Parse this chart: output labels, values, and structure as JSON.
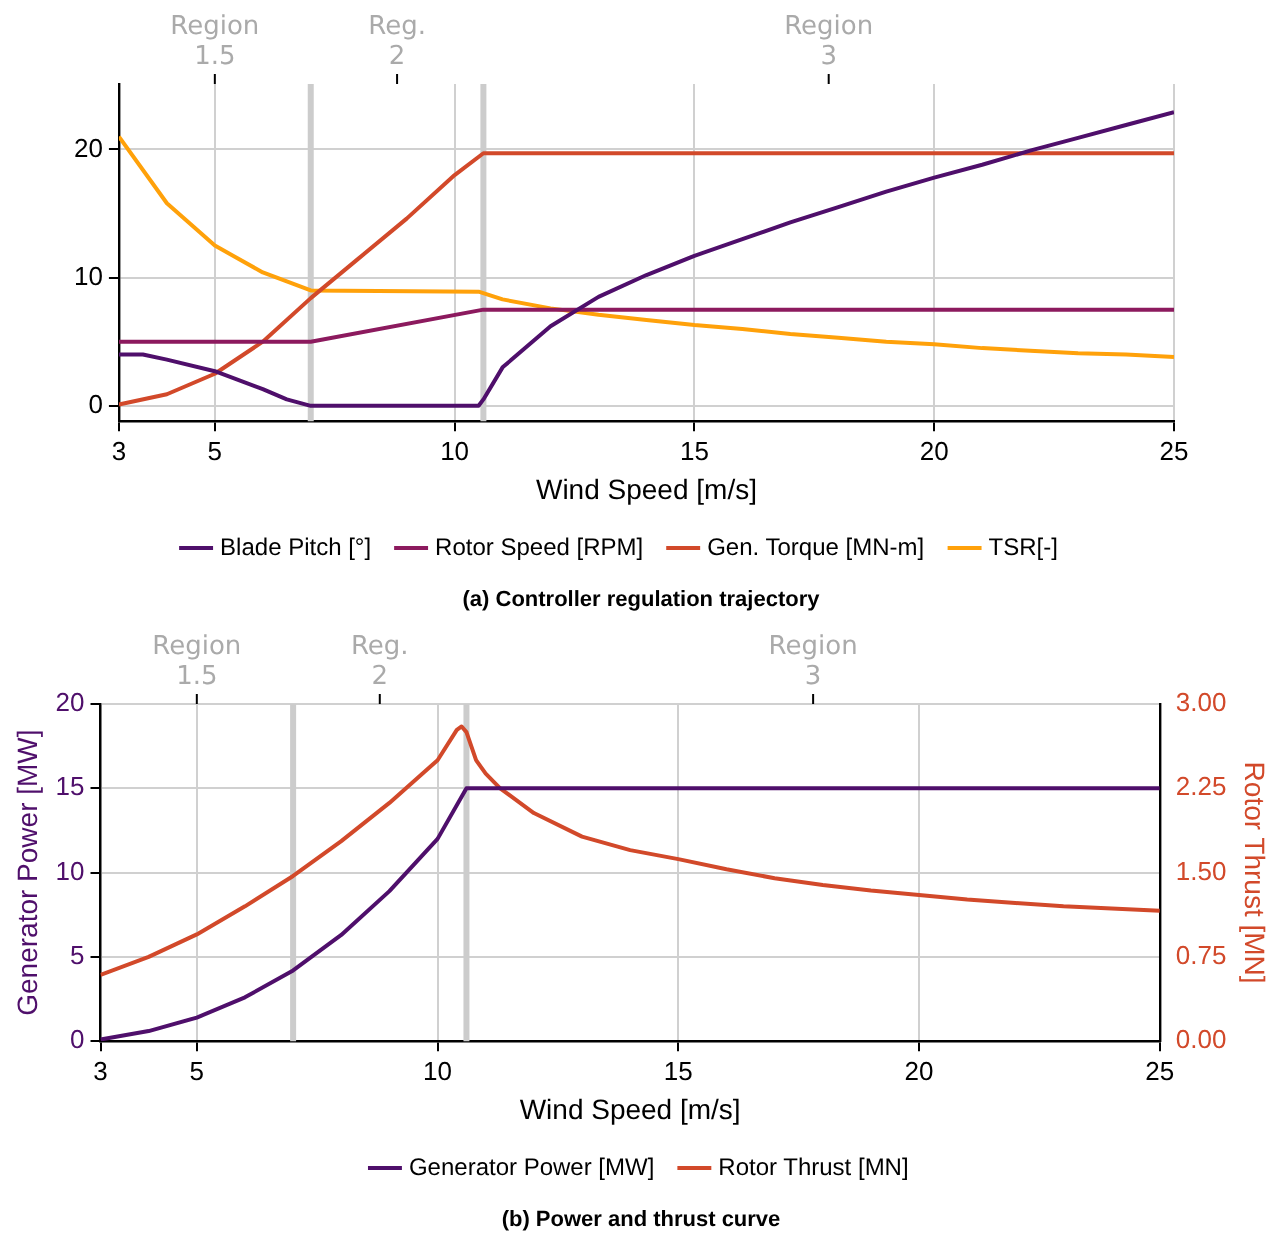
{
  "chart_data": [
    {
      "type": "line",
      "title": "(a) Controller regulation trajectory",
      "xlabel": "Wind Speed [m/s]",
      "xlim": [
        3,
        25
      ],
      "xticks": [
        3,
        5,
        10,
        15,
        20,
        25
      ],
      "ylim": [
        -1.2,
        25.1
      ],
      "yticks": [
        0,
        10,
        20
      ],
      "annotations": [
        "Region\n1.5",
        "Reg.\n2",
        "Region\n3"
      ],
      "grid": true,
      "legend": "bottom",
      "marker": "none",
      "line_style": "solid",
      "ref_lines": [
        {
          "axis": "x",
          "value": 7,
          "color": "#cccccc"
        },
        {
          "axis": "x",
          "value": 10.6,
          "color": "#cccccc"
        }
      ],
      "series": [
        {
          "name": "Blade Pitch [°]",
          "color": "#4f0f6b",
          "x": [
            3,
            3.5,
            4,
            5,
            6,
            6.5,
            7,
            10.5,
            10.6,
            11,
            12,
            13,
            14,
            15,
            16,
            17,
            18,
            19,
            20,
            21,
            22,
            23,
            24,
            25
          ],
          "values": [
            4,
            4,
            3.6,
            2.7,
            1.3,
            0.5,
            0,
            0,
            0.5,
            3,
            6.2,
            8.5,
            10.2,
            11.7,
            13,
            14.3,
            15.5,
            16.7,
            17.8,
            18.8,
            19.9,
            20.9,
            21.9,
            22.9
          ]
        },
        {
          "name": "Rotor Speed [RPM]",
          "color": "#8c1a5e",
          "x": [
            3,
            7,
            10.6,
            25
          ],
          "values": [
            5,
            5,
            7.5,
            7.5
          ]
        },
        {
          "name": "Gen. Torque [MN-m]",
          "color": "#d2492a",
          "x": [
            3,
            4,
            5,
            6,
            7,
            8,
            9,
            10,
            10.6,
            25
          ],
          "values": [
            0.1,
            0.9,
            2.5,
            5,
            8.4,
            11.5,
            14.6,
            18,
            19.7,
            19.7
          ]
        },
        {
          "name": "TSR[-]",
          "color": "#ffa10a",
          "x": [
            3,
            4,
            5,
            6,
            7,
            10.5,
            11,
            12,
            13,
            14,
            15,
            16,
            17,
            18,
            19,
            20,
            21,
            22,
            23,
            24,
            25
          ],
          "values": [
            21,
            15.8,
            12.5,
            10.4,
            9,
            8.9,
            8.3,
            7.6,
            7.1,
            6.7,
            6.3,
            6,
            5.6,
            5.3,
            5,
            4.8,
            4.5,
            4.3,
            4.1,
            4,
            3.8
          ]
        }
      ]
    },
    {
      "type": "line",
      "title": "(b) Power and thrust curve",
      "xlabel": "Wind Speed [m/s]",
      "ylabel": "Generator Power [MW]",
      "y2label": "Rotor Thrust [MN]",
      "xlim": [
        3,
        25
      ],
      "xticks": [
        3,
        5,
        10,
        15,
        20,
        25
      ],
      "ylim": [
        0,
        20
      ],
      "yticks": [
        0,
        5,
        10,
        15,
        20
      ],
      "y2lim": [
        0,
        3
      ],
      "y2ticks": [
        {
          "value": 0,
          "label": "0.00"
        },
        {
          "value": 0.75,
          "label": "0.75"
        },
        {
          "value": 1.5,
          "label": "1.50"
        },
        {
          "value": 2.25,
          "label": "2.25"
        },
        {
          "value": 3,
          "label": "3.00"
        }
      ],
      "annotations": [
        "Region\n1.5",
        "Reg.\n2",
        "Region\n3"
      ],
      "grid": true,
      "legend": "bottom",
      "marker": "none",
      "line_style": "solid",
      "ref_lines": [
        {
          "axis": "x",
          "value": 7,
          "color": "#cccccc"
        },
        {
          "axis": "x",
          "value": 10.6,
          "color": "#cccccc"
        }
      ],
      "series": [
        {
          "name": "Generator Power [MW]",
          "color": "#4f0f6b",
          "x": [
            3,
            4,
            5,
            6,
            7,
            8,
            9,
            10,
            10.6,
            25
          ],
          "values": [
            0.1,
            0.6,
            1.4,
            2.6,
            4.2,
            6.3,
            8.9,
            12,
            15,
            15
          ]
        },
        {
          "name": "Rotor Thrust [MN]",
          "color": "#d2492a",
          "axis": "y2",
          "x": [
            3,
            4,
            5,
            6,
            7,
            8,
            9,
            10,
            10.4,
            10.5,
            10.6,
            10.8,
            11,
            11.3,
            12,
            13,
            14,
            15,
            16,
            17,
            18,
            19,
            20,
            21,
            22,
            23,
            24,
            25
          ],
          "values": [
            0.59,
            0.75,
            0.95,
            1.2,
            1.47,
            1.78,
            2.12,
            2.5,
            2.77,
            2.8,
            2.75,
            2.5,
            2.38,
            2.25,
            2.03,
            1.82,
            1.7,
            1.62,
            1.53,
            1.45,
            1.39,
            1.34,
            1.3,
            1.26,
            1.23,
            1.2,
            1.18,
            1.16
          ]
        }
      ]
    }
  ]
}
